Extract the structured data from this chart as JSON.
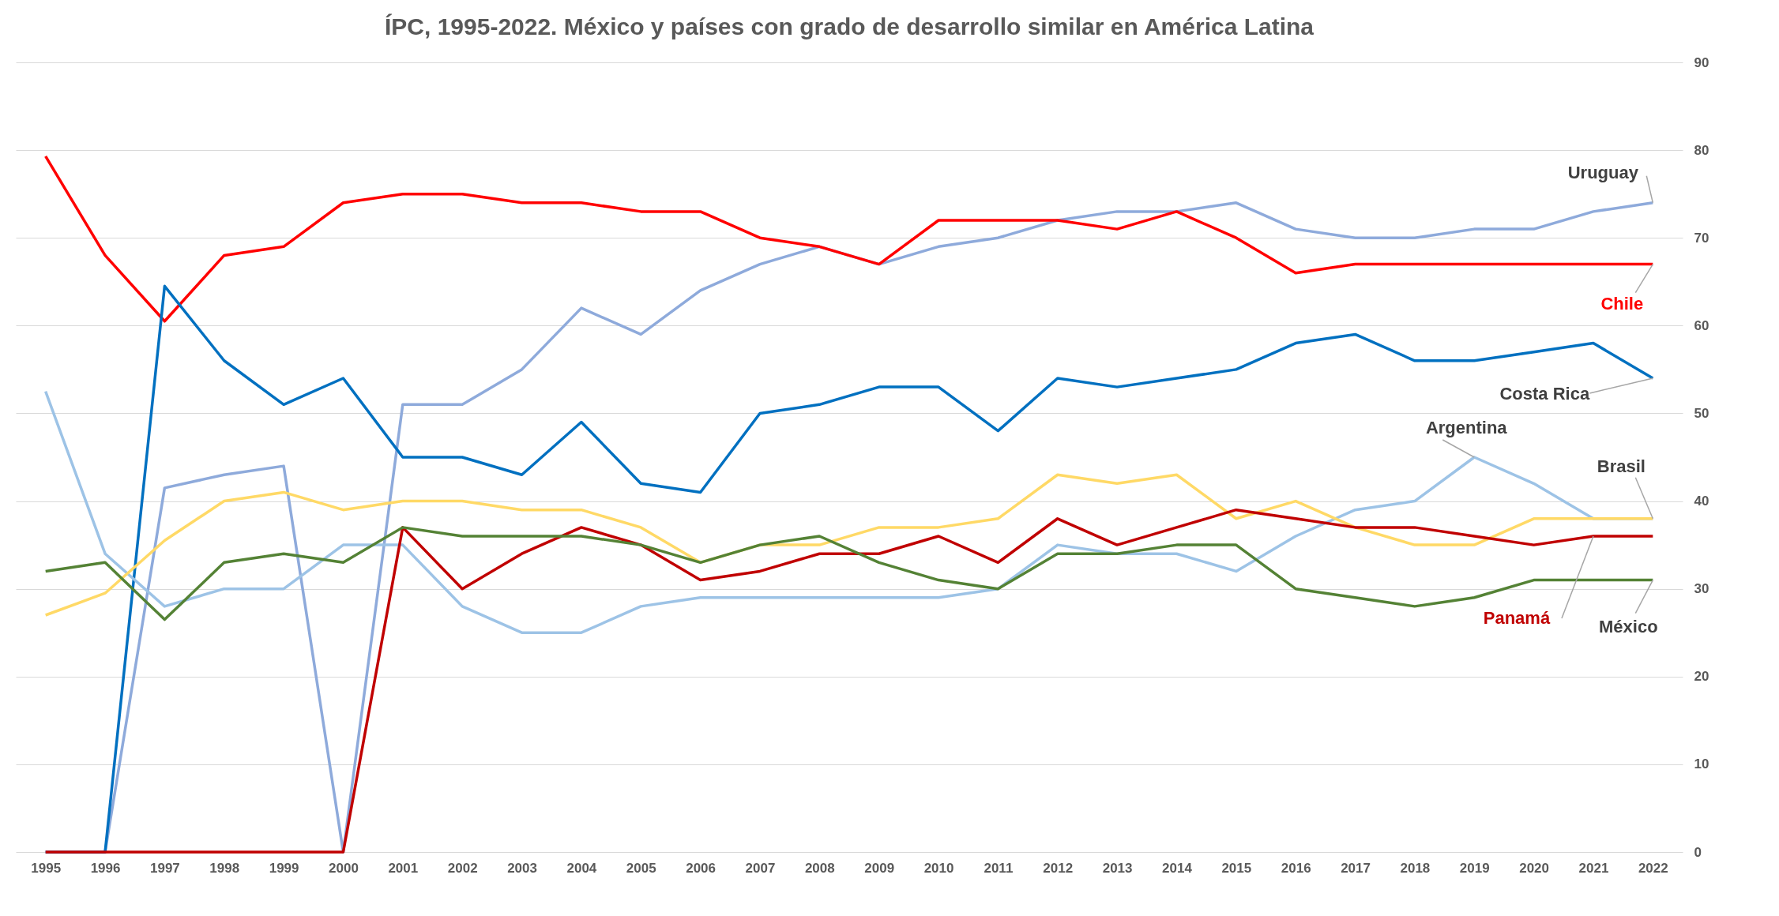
{
  "chart_data": {
    "type": "line",
    "title": "ÍPC, 1995-2022. México y países con grado de desarrollo similar en América Latina",
    "categories": [
      "1995",
      "1996",
      "1997",
      "1998",
      "1999",
      "2000",
      "2001",
      "2002",
      "2003",
      "2004",
      "2005",
      "2006",
      "2007",
      "2008",
      "2009",
      "2010",
      "2011",
      "2012",
      "2013",
      "2014",
      "2015",
      "2016",
      "2017",
      "2018",
      "2019",
      "2020",
      "2021",
      "2022"
    ],
    "series": [
      {
        "name": "Uruguay",
        "color": "#8eaadb",
        "values": [
          0,
          0,
          41.5,
          43,
          44,
          0,
          51,
          51,
          55,
          62,
          59,
          64,
          67,
          69,
          67,
          69,
          70,
          72,
          73,
          73,
          74,
          71,
          70,
          70,
          71,
          71,
          73,
          74
        ]
      },
      {
        "name": "Chile",
        "color": "#ff0000",
        "values": [
          79.3,
          68,
          60.5,
          68,
          69,
          74,
          75,
          75,
          74,
          74,
          73,
          73,
          70,
          69,
          67,
          72,
          72,
          72,
          71,
          73,
          70,
          66,
          67,
          67,
          67,
          67,
          67,
          67
        ]
      },
      {
        "name": "Costa Rica",
        "color": "#0070c0",
        "values": [
          0,
          0,
          64.5,
          56,
          51,
          54,
          45,
          45,
          43,
          49,
          42,
          41,
          50,
          51,
          53,
          53,
          48,
          54,
          53,
          54,
          55,
          58,
          59,
          56,
          56,
          57,
          58,
          54
        ]
      },
      {
        "name": "Argentina",
        "color": "#9dc3e6",
        "values": [
          52.5,
          34,
          28,
          30,
          30,
          35,
          35,
          28,
          25,
          25,
          28,
          29,
          29,
          29,
          29,
          29,
          30,
          35,
          34,
          34,
          32,
          36,
          39,
          40,
          45,
          42,
          38,
          38
        ]
      },
      {
        "name": "Brasil",
        "color": "#ffd966",
        "values": [
          27,
          29.5,
          35.5,
          40,
          41,
          39,
          40,
          40,
          39,
          39,
          37,
          33,
          35,
          35,
          37,
          37,
          38,
          43,
          42,
          43,
          38,
          40,
          37,
          35,
          35,
          38,
          38,
          38
        ]
      },
      {
        "name": "Panamá",
        "color": "#c00000",
        "values": [
          0,
          0,
          0,
          0,
          0,
          0,
          37,
          30,
          34,
          37,
          35,
          31,
          32,
          34,
          34,
          36,
          33,
          38,
          35,
          37,
          39,
          38,
          37,
          37,
          36,
          35,
          36,
          36
        ]
      },
      {
        "name": "México",
        "color": "#548235",
        "values": [
          32,
          33,
          26.5,
          33,
          34,
          33,
          37,
          36,
          36,
          36,
          35,
          33,
          35,
          36,
          33,
          31,
          30,
          34,
          34,
          35,
          35,
          30,
          29,
          28,
          29,
          31,
          31,
          31
        ]
      }
    ],
    "ylim": [
      0,
      90
    ],
    "yticks": [
      0,
      10,
      20,
      30,
      40,
      50,
      60,
      70,
      80,
      90
    ],
    "grid": "y",
    "legend": false,
    "line_style": "solid",
    "marker": "none"
  }
}
